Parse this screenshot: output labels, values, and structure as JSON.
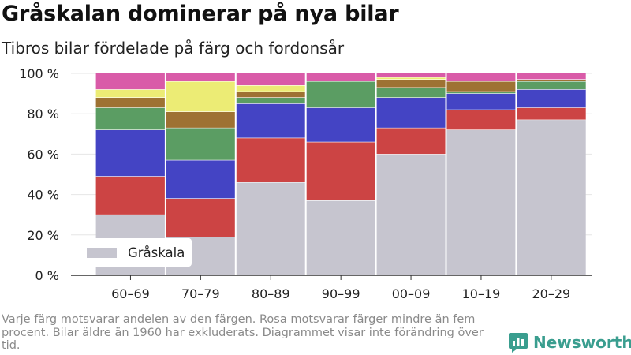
{
  "title": "Gråskalan dominerar på nya bilar",
  "subtitle": "Tibros bilar fördelade på färg och fordonsår",
  "footnote": "Varje färg motsvarar andelen av den färgen. Rosa motsvarar färger mindre än fem procent. Bilar äldre än 1960 har exkluderats. Diagrammet visar inte förändring över tid.",
  "brand": {
    "name": "Newsworthy",
    "icon": "newsworthy-logo-icon",
    "color": "#3a9e8f"
  },
  "chart_data": {
    "type": "bar",
    "stacked": true,
    "categories": [
      "60–69",
      "70–79",
      "80–89",
      "90–99",
      "00–09",
      "10–19",
      "20–29"
    ],
    "ylim": [
      0,
      100
    ],
    "yticks": [
      0,
      20,
      40,
      60,
      80,
      100
    ],
    "ytick_labels": [
      "0 %",
      "20 %",
      "40 %",
      "60 %",
      "80 %",
      "100 %"
    ],
    "grid": true,
    "legend": {
      "position": "bottom-left",
      "entries": [
        "Gråskala"
      ]
    },
    "series": [
      {
        "name": "Gråskala",
        "color": "#c6c5cf",
        "values": [
          30,
          19,
          46,
          37,
          60,
          72,
          77
        ]
      },
      {
        "color": "#cc4444",
        "values": [
          19,
          19,
          22,
          29,
          13,
          10,
          6
        ]
      },
      {
        "color": "#4444c4",
        "values": [
          23,
          19,
          17,
          17,
          15,
          8,
          9
        ]
      },
      {
        "color": "#5b9d63",
        "values": [
          11,
          16,
          3,
          13,
          5,
          1,
          4
        ]
      },
      {
        "color": "#9e7233",
        "values": [
          5,
          8,
          3,
          0,
          4,
          5,
          1
        ]
      },
      {
        "color": "#ecec75",
        "values": [
          4,
          15,
          3,
          0,
          1,
          0,
          0
        ]
      },
      {
        "color": "#d95ba8",
        "values": [
          8,
          4,
          6,
          4,
          2,
          4,
          3
        ]
      }
    ]
  }
}
